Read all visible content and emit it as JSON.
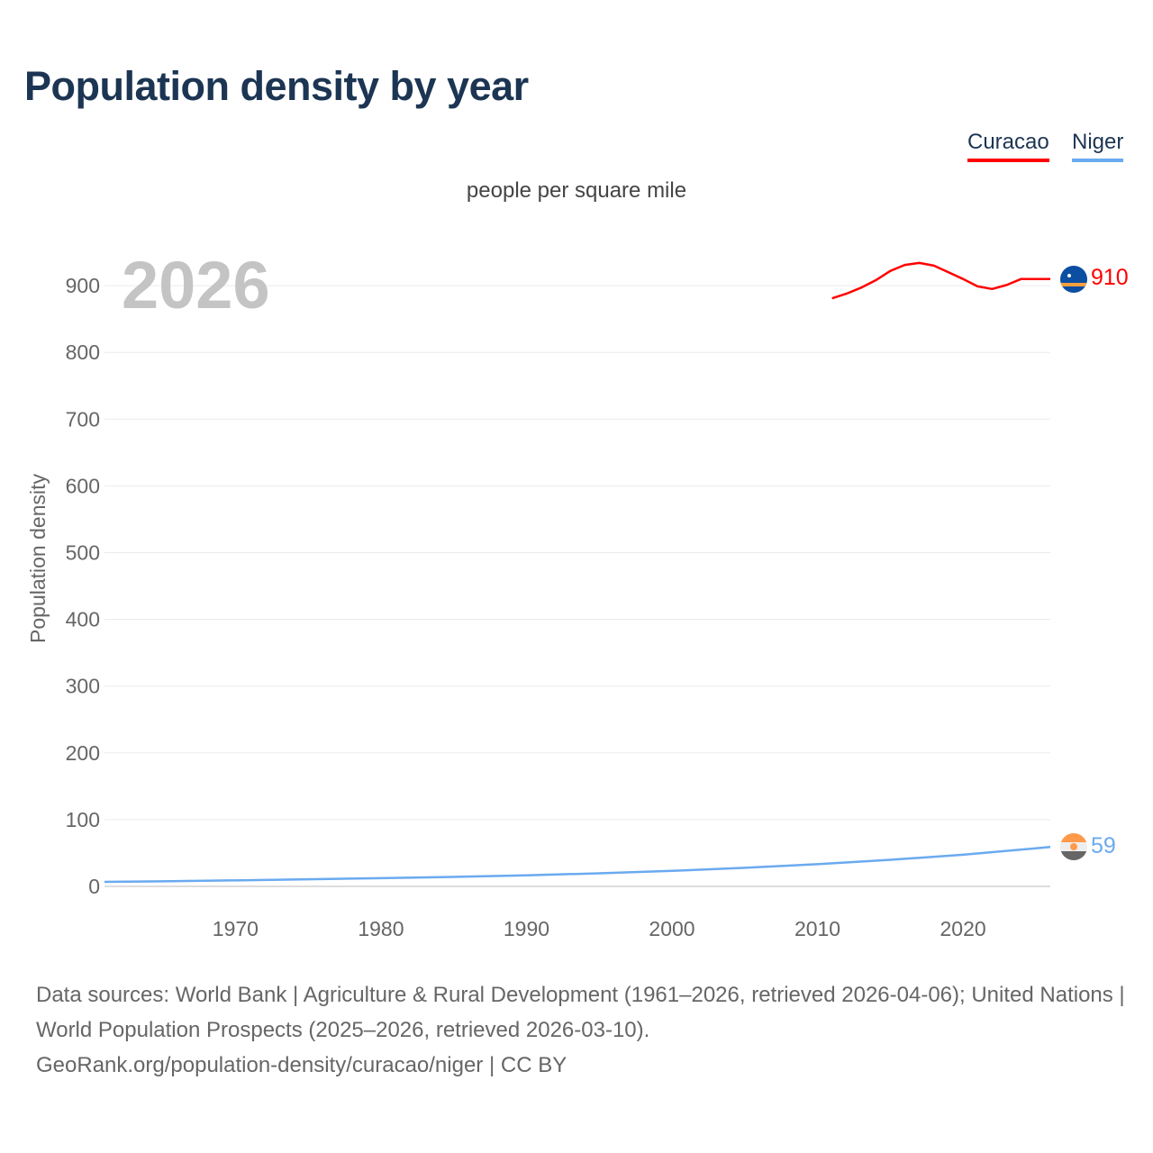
{
  "title": "Population density by year",
  "legend": [
    {
      "label": "Curacao",
      "color": "#ff0000"
    },
    {
      "label": "Niger",
      "color": "#6aaaf0"
    }
  ],
  "chart_data": {
    "type": "line",
    "title": "Population density by year",
    "subtitle": "people per square mile",
    "ylabel": "Population density",
    "xlabel": "",
    "year_watermark": "2026",
    "xlim": [
      1961,
      2026
    ],
    "ylim": [
      0,
      950
    ],
    "xticks": [
      "1970",
      "1980",
      "1990",
      "2000",
      "2010",
      "2020"
    ],
    "yticks": [
      "0",
      "100",
      "200",
      "300",
      "400",
      "500",
      "600",
      "700",
      "800",
      "900"
    ],
    "grid": true,
    "legend_position": "top-right",
    "series": [
      {
        "name": "Curacao",
        "color": "#ff0000",
        "end_label": "910",
        "x": [
          2011,
          2012,
          2013,
          2014,
          2015,
          2016,
          2017,
          2018,
          2019,
          2020,
          2021,
          2022,
          2023,
          2024,
          2025,
          2026
        ],
        "y": [
          881,
          888,
          897,
          908,
          922,
          931,
          934,
          930,
          920,
          910,
          899,
          895,
          901,
          910,
          910,
          910
        ]
      },
      {
        "name": "Niger",
        "color": "#6aaaf0",
        "end_label": "59",
        "x": [
          1961,
          1965,
          1970,
          1975,
          1980,
          1985,
          1990,
          1995,
          2000,
          2005,
          2010,
          2015,
          2020,
          2025,
          2026
        ],
        "y": [
          6.7,
          7.6,
          9.0,
          10.6,
          12.3,
          14.2,
          16.5,
          19.6,
          23.2,
          27.8,
          33.3,
          39.8,
          47.4,
          57.0,
          59
        ]
      }
    ]
  },
  "footer": {
    "line1": "Data sources: World Bank | Agriculture & Rural Development (1961–2026, retrieved 2026-04-06); United Nations | World Population Prospects (2025–2026, retrieved 2026-03-10).",
    "line2": "GeoRank.org/population-density/curacao/niger | CC BY"
  }
}
